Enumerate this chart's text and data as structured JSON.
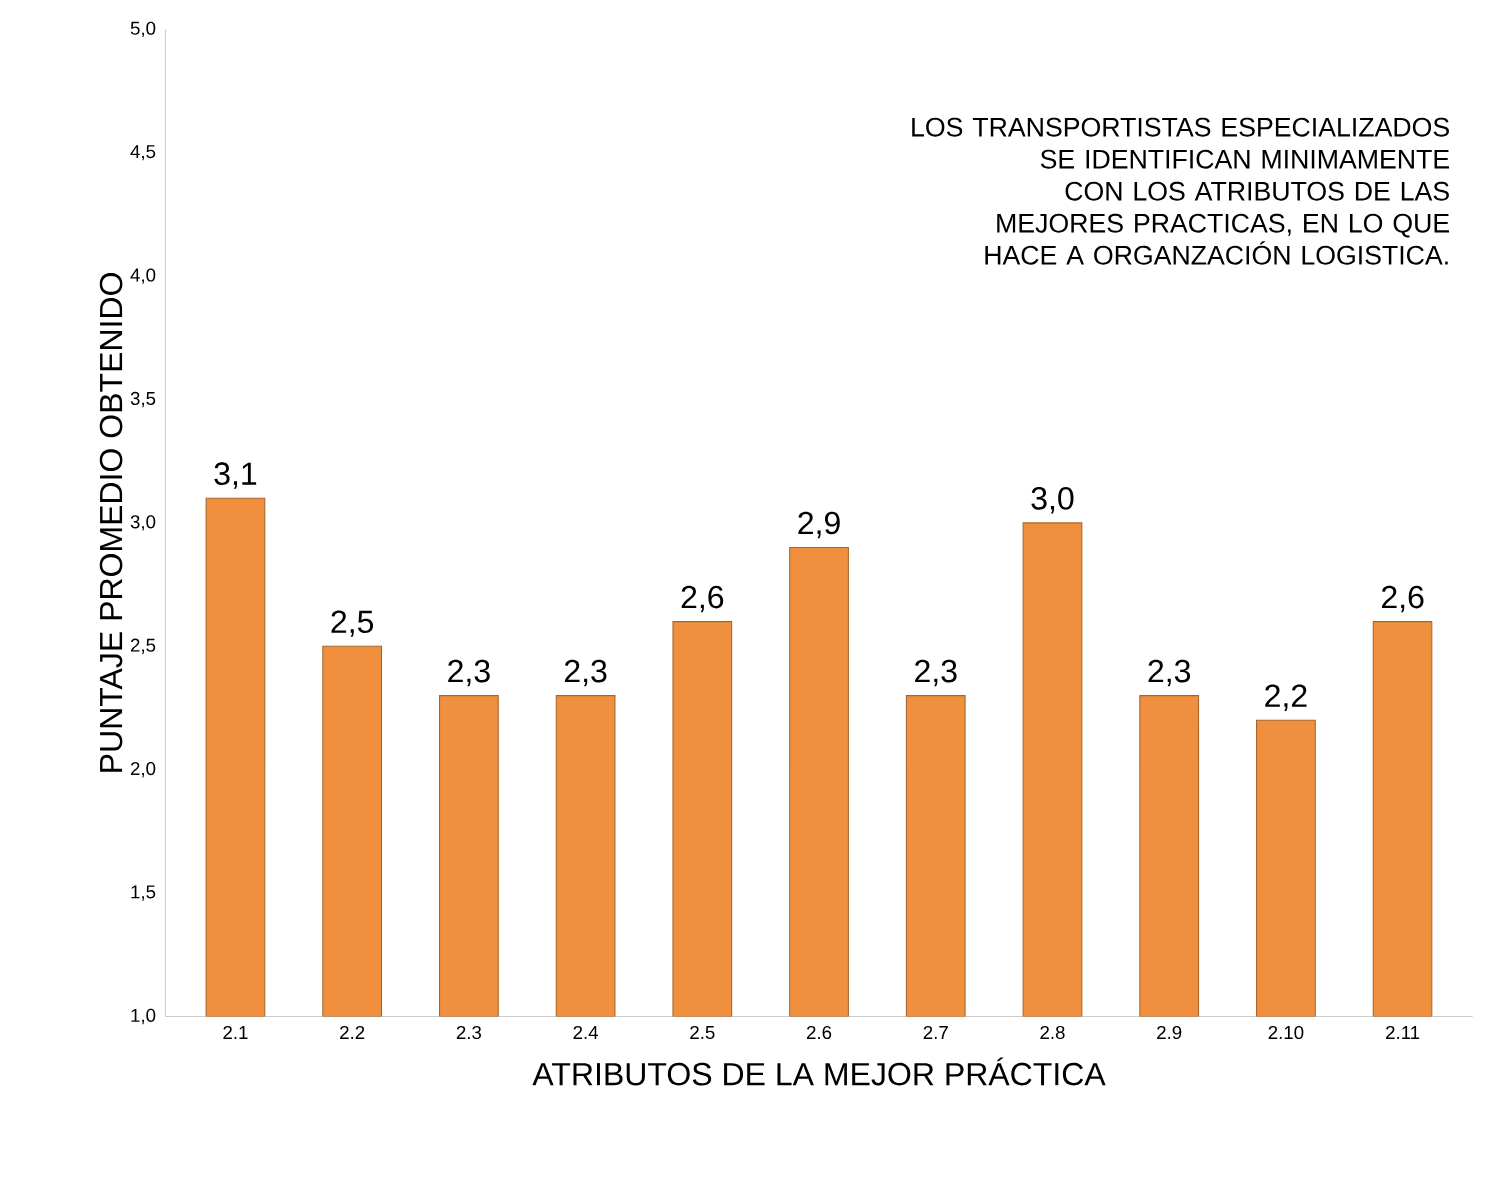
{
  "chart_data": {
    "type": "bar",
    "xlabel": "ATRIBUTOS DE LA MEJOR PRÁCTICA",
    "ylabel": "PUNTAJE  PROMEDIO  OBTENIDO",
    "categories": [
      "2.1",
      "2.2",
      "2.3",
      "2.4",
      "2.5",
      "2.6",
      "2.7",
      "2.8",
      "2.9",
      "2.10",
      "2.11"
    ],
    "values": [
      3.1,
      2.5,
      2.3,
      2.3,
      2.6,
      2.9,
      2.3,
      3.0,
      2.3,
      2.2,
      2.6
    ],
    "value_labels": [
      "3,1",
      "2,5",
      "2,3",
      "2,3",
      "2,6",
      "2,9",
      "2,3",
      "3,0",
      "2,3",
      "2,2",
      "2,6"
    ],
    "color": "#f0903e",
    "ylim": [
      1.0,
      5.0
    ],
    "yticks": [
      {
        "value": 1.0,
        "label": "1,0"
      },
      {
        "value": 1.5,
        "label": "1,5"
      },
      {
        "value": 2.0,
        "label": "2,0"
      },
      {
        "value": 2.5,
        "label": "2,5"
      },
      {
        "value": 3.0,
        "label": "3,0"
      },
      {
        "value": 3.5,
        "label": "3,5"
      },
      {
        "value": 4.0,
        "label": "4,0"
      },
      {
        "value": 4.5,
        "label": "4,5"
      },
      {
        "value": 5.0,
        "label": "5,0"
      }
    ],
    "annotations": [
      "LOS TRANSPORTISTAS ESPECIALIZADOS  SE IDENTIFICAN MINIMAMENTE CON LOS ATRIBUTOS DE LAS MEJORES PRACTICAS, EN LO QUE HACE A ORGANZACIÓN LOGISTICA."
    ]
  }
}
